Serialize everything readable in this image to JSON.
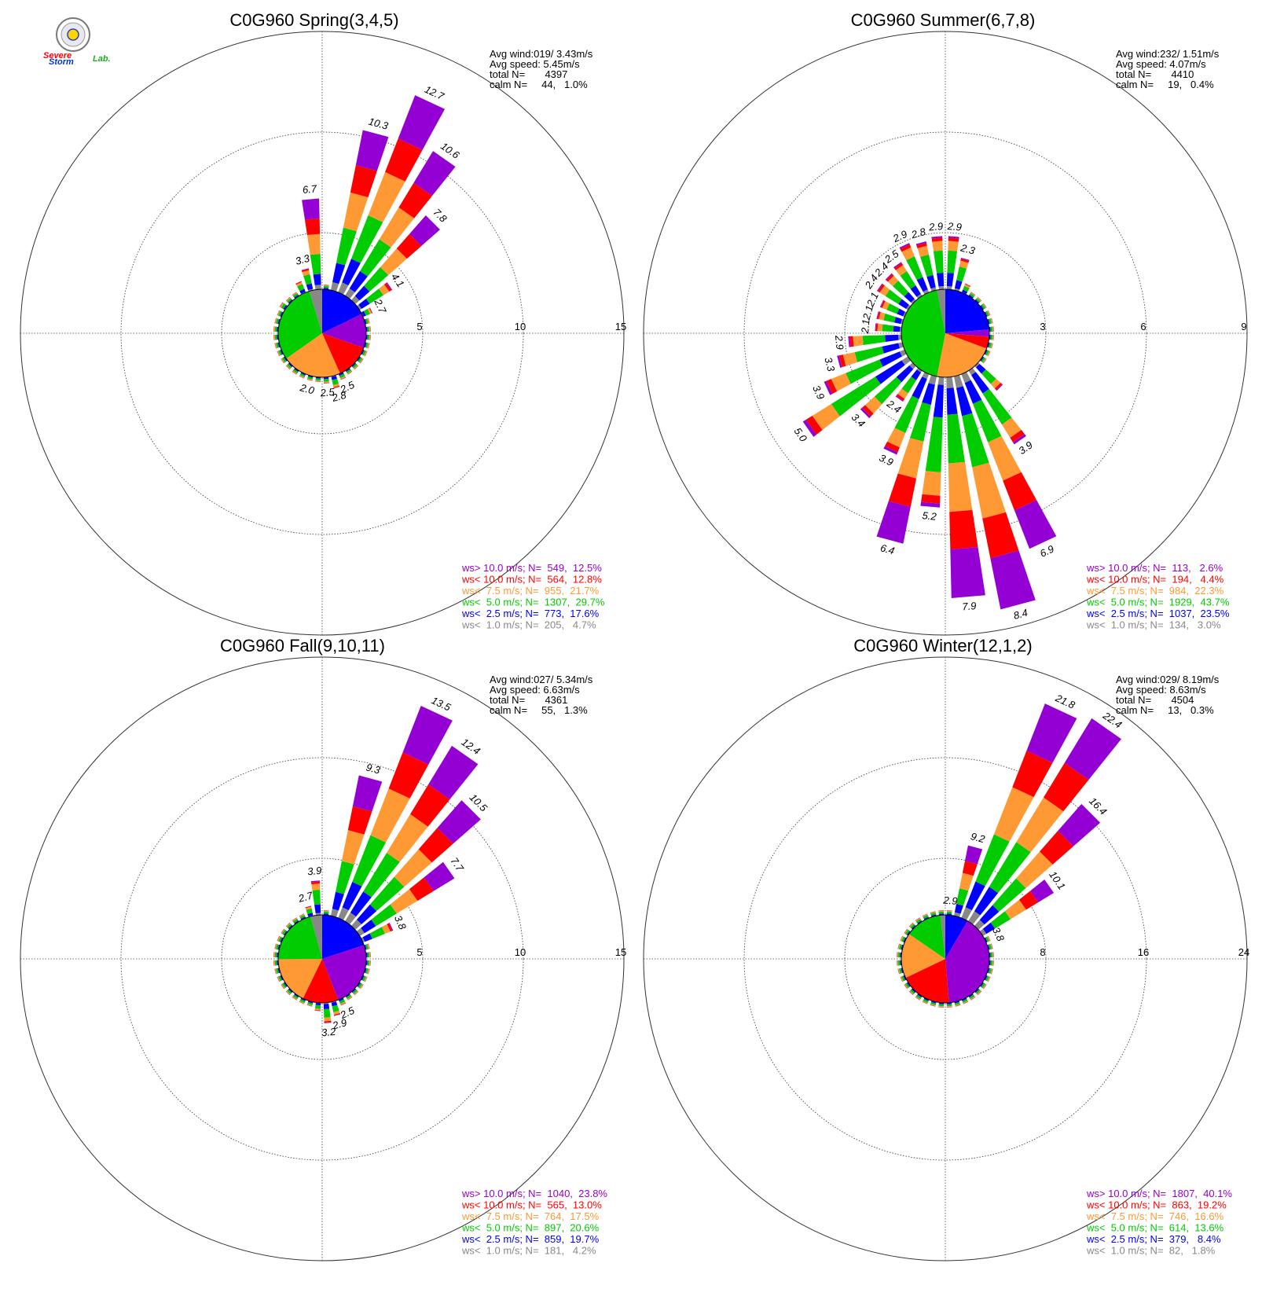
{
  "logo": {
    "text_a": "Severe",
    "text_b": "Storm",
    "text_c": "Lab."
  },
  "legend_colors": [
    "#9400d3",
    "#ff0000",
    "#ff9933",
    "#00cc00",
    "#0000ff",
    "#888888"
  ],
  "chart_data": [
    {
      "type": "windrose",
      "title": "C0G960 Spring(3,4,5)",
      "rings": [
        5,
        10,
        15
      ],
      "rmax": 15,
      "stats": [
        "Avg wind:019/ 3.43m/s",
        "Avg speed: 5.45m/s",
        "total N=       4397",
        "calm N=     44,   1.0%"
      ],
      "legend": [
        {
          "label": "ws> 10.0 m/s; N=",
          "value": "549,  12.5%"
        },
        {
          "label": "ws< 10.0 m/s; N=",
          "value": "564,  12.8%"
        },
        {
          "label": "ws<  7.5 m/s; N=",
          "value": "955,  21.7%"
        },
        {
          "label": "ws<  5.0 m/s; N=",
          "value": "1307,  29.7%"
        },
        {
          "label": "ws<  2.5 m/s; N=",
          "value": "773,  17.6%"
        },
        {
          "label": "ws<  1.0 m/s; N=",
          "value": "205,   4.7%"
        }
      ],
      "pie": [
        17.6,
        12.5,
        12.8,
        21.7,
        29.7,
        4.7
      ],
      "bars": [
        {
          "dir": 5,
          "v": 2.1
        },
        {
          "dir": 15,
          "v": 10.3,
          "label": "10.3"
        },
        {
          "dir": 25,
          "v": 12.7,
          "label": "12.7"
        },
        {
          "dir": 35,
          "v": 10.6,
          "label": "10.6"
        },
        {
          "dir": 45,
          "v": 7.8,
          "label": "7.8"
        },
        {
          "dir": 55,
          "v": 4.1,
          "label": "4.1"
        },
        {
          "dir": 65,
          "v": 2.7,
          "label": "2.7"
        },
        {
          "dir": 75,
          "v": 1.6
        },
        {
          "dir": 85,
          "v": 1.1
        },
        {
          "dir": 95,
          "v": 1.0
        },
        {
          "dir": 105,
          "v": 1.0
        },
        {
          "dir": 115,
          "v": 1.1
        },
        {
          "dir": 125,
          "v": 1.2
        },
        {
          "dir": 135,
          "v": 1.4
        },
        {
          "dir": 145,
          "v": 1.8
        },
        {
          "dir": 155,
          "v": 2.5,
          "label": "2.5"
        },
        {
          "dir": 165,
          "v": 2.8,
          "label": "2.8"
        },
        {
          "dir": 175,
          "v": 2.5,
          "label": "2.5"
        },
        {
          "dir": 185,
          "v": 2.0
        },
        {
          "dir": 195,
          "v": 2.0,
          "label": "2.0"
        },
        {
          "dir": 205,
          "v": 1.8
        },
        {
          "dir": 215,
          "v": 1.7
        },
        {
          "dir": 225,
          "v": 1.9
        },
        {
          "dir": 235,
          "v": 2.1
        },
        {
          "dir": 245,
          "v": 2.2
        },
        {
          "dir": 255,
          "v": 2.2
        },
        {
          "dir": 265,
          "v": 2.1
        },
        {
          "dir": 275,
          "v": 2.1
        },
        {
          "dir": 285,
          "v": 2.1
        },
        {
          "dir": 295,
          "v": 2.3
        },
        {
          "dir": 305,
          "v": 2.5
        },
        {
          "dir": 315,
          "v": 2.4
        },
        {
          "dir": 325,
          "v": 2.2
        },
        {
          "dir": 335,
          "v": 2.8
        },
        {
          "dir": 345,
          "v": 3.3,
          "label": "3.3"
        },
        {
          "dir": 355,
          "v": 6.7,
          "label": "6.7"
        }
      ]
    },
    {
      "type": "windrose",
      "title": "C0G960 Summer(6,7,8)",
      "rings": [
        3,
        6,
        9
      ],
      "rmax": 9,
      "stats": [
        "Avg wind:232/ 1.51m/s",
        "Avg speed: 4.07m/s",
        "total N=       4410",
        "calm N=     19,   0.4%"
      ],
      "legend": [
        {
          "label": "ws> 10.0 m/s; N=",
          "value": "113,   2.6%"
        },
        {
          "label": "ws< 10.0 m/s; N=",
          "value": "194,   4.4%"
        },
        {
          "label": "ws<  7.5 m/s; N=",
          "value": "984,  22.3%"
        },
        {
          "label": "ws<  5.0 m/s; N=",
          "value": "1929,  43.7%"
        },
        {
          "label": "ws<  2.5 m/s; N=",
          "value": "1037,  23.5%"
        },
        {
          "label": "ws<  1.0 m/s; N=",
          "value": "134,   3.0%"
        }
      ],
      "pie": [
        23.5,
        2.6,
        4.4,
        22.3,
        43.7,
        3.0
      ],
      "bars": [
        {
          "dir": 5,
          "v": 2.9,
          "label": "2.9"
        },
        {
          "dir": 15,
          "v": 2.3,
          "label": "2.3"
        },
        {
          "dir": 25,
          "v": 1.6
        },
        {
          "dir": 35,
          "v": 1.3
        },
        {
          "dir": 45,
          "v": 1.1
        },
        {
          "dir": 55,
          "v": 1.0
        },
        {
          "dir": 65,
          "v": 0.9
        },
        {
          "dir": 75,
          "v": 0.8
        },
        {
          "dir": 85,
          "v": 0.7
        },
        {
          "dir": 95,
          "v": 0.7
        },
        {
          "dir": 105,
          "v": 0.8
        },
        {
          "dir": 115,
          "v": 1.0
        },
        {
          "dir": 125,
          "v": 1.4
        },
        {
          "dir": 135,
          "v": 2.3
        },
        {
          "dir": 145,
          "v": 3.9,
          "label": "3.9"
        },
        {
          "dir": 155,
          "v": 6.9,
          "label": "6.9"
        },
        {
          "dir": 165,
          "v": 8.4,
          "label": "8.4"
        },
        {
          "dir": 175,
          "v": 7.9,
          "label": "7.9"
        },
        {
          "dir": 185,
          "v": 5.2,
          "label": "5.2"
        },
        {
          "dir": 195,
          "v": 6.4,
          "label": "6.4"
        },
        {
          "dir": 205,
          "v": 3.9,
          "label": "3.9"
        },
        {
          "dir": 215,
          "v": 2.4,
          "label": "2.4"
        },
        {
          "dir": 225,
          "v": 3.4,
          "label": "3.4"
        },
        {
          "dir": 235,
          "v": 5.0,
          "label": "5.0"
        },
        {
          "dir": 245,
          "v": 3.9,
          "label": "3.9"
        },
        {
          "dir": 255,
          "v": 3.3,
          "label": "3.3"
        },
        {
          "dir": 265,
          "v": 2.9,
          "label": "2.9"
        },
        {
          "dir": 275,
          "v": 2.1,
          "label": "2.1"
        },
        {
          "dir": 285,
          "v": 2.1,
          "label": "2.1"
        },
        {
          "dir": 295,
          "v": 2.1,
          "label": "2.1"
        },
        {
          "dir": 305,
          "v": 2.4,
          "label": "2.4"
        },
        {
          "dir": 315,
          "v": 2.4,
          "label": "2.4"
        },
        {
          "dir": 325,
          "v": 2.5,
          "label": "2.5"
        },
        {
          "dir": 335,
          "v": 2.9,
          "label": "2.9"
        },
        {
          "dir": 345,
          "v": 2.8,
          "label": "2.8"
        },
        {
          "dir": 355,
          "v": 2.9,
          "label": "2.9"
        }
      ]
    },
    {
      "type": "windrose",
      "title": "C0G960 Fall(9,10,11)",
      "rings": [
        5,
        10,
        15
      ],
      "rmax": 15,
      "stats": [
        "Avg wind:027/ 5.34m/s",
        "Avg speed: 6.63m/s",
        "total N=       4361",
        "calm N=     55,   1.3%"
      ],
      "legend": [
        {
          "label": "ws> 10.0 m/s; N=",
          "value": "1040,  23.8%"
        },
        {
          "label": "ws< 10.0 m/s; N=",
          "value": "565,  13.0%"
        },
        {
          "label": "ws<  7.5 m/s; N=",
          "value": "764,  17.5%"
        },
        {
          "label": "ws<  5.0 m/s; N=",
          "value": "897,  20.6%"
        },
        {
          "label": "ws<  2.5 m/s; N=",
          "value": "859,  19.7%"
        },
        {
          "label": "ws<  1.0 m/s; N=",
          "value": "181,   4.2%"
        }
      ],
      "pie": [
        19.7,
        23.8,
        13.0,
        17.5,
        20.6,
        4.2
      ],
      "bars": [
        {
          "dir": 5,
          "v": 2.4
        },
        {
          "dir": 15,
          "v": 9.3,
          "label": "9.3"
        },
        {
          "dir": 25,
          "v": 13.5,
          "label": "13.5"
        },
        {
          "dir": 35,
          "v": 12.4,
          "label": "12.4"
        },
        {
          "dir": 45,
          "v": 10.5,
          "label": "10.5"
        },
        {
          "dir": 55,
          "v": 7.7,
          "label": "7.7"
        },
        {
          "dir": 65,
          "v": 3.8,
          "label": "3.8"
        },
        {
          "dir": 75,
          "v": 1.7
        },
        {
          "dir": 85,
          "v": 1.2
        },
        {
          "dir": 95,
          "v": 1.0
        },
        {
          "dir": 105,
          "v": 1.0
        },
        {
          "dir": 115,
          "v": 1.0
        },
        {
          "dir": 125,
          "v": 1.1
        },
        {
          "dir": 135,
          "v": 1.3
        },
        {
          "dir": 145,
          "v": 1.7
        },
        {
          "dir": 155,
          "v": 2.5,
          "label": "2.5"
        },
        {
          "dir": 165,
          "v": 2.9,
          "label": "2.9"
        },
        {
          "dir": 175,
          "v": 3.2,
          "label": "3.2"
        },
        {
          "dir": 185,
          "v": 2.6
        },
        {
          "dir": 195,
          "v": 1.9
        },
        {
          "dir": 205,
          "v": 1.7
        },
        {
          "dir": 215,
          "v": 1.6
        },
        {
          "dir": 225,
          "v": 1.6
        },
        {
          "dir": 235,
          "v": 1.6
        },
        {
          "dir": 245,
          "v": 1.6
        },
        {
          "dir": 255,
          "v": 1.6
        },
        {
          "dir": 265,
          "v": 1.6
        },
        {
          "dir": 275,
          "v": 1.6
        },
        {
          "dir": 285,
          "v": 1.7
        },
        {
          "dir": 295,
          "v": 1.9
        },
        {
          "dir": 305,
          "v": 2.0
        },
        {
          "dir": 315,
          "v": 2.0
        },
        {
          "dir": 325,
          "v": 2.0
        },
        {
          "dir": 335,
          "v": 2.2
        },
        {
          "dir": 345,
          "v": 2.7,
          "label": "2.7"
        },
        {
          "dir": 355,
          "v": 3.9,
          "label": "3.9"
        }
      ]
    },
    {
      "type": "windrose",
      "title": "C0G960 Winter(12,1,2)",
      "rings": [
        8,
        16,
        24
      ],
      "rmax": 24,
      "stats": [
        "Avg wind:029/ 8.19m/s",
        "Avg speed: 8.63m/s",
        "total N=       4504",
        "calm N=     13,   0.3%"
      ],
      "legend": [
        {
          "label": "ws> 10.0 m/s; N=",
          "value": "1807,  40.1%"
        },
        {
          "label": "ws< 10.0 m/s; N=",
          "value": "863,  19.2%"
        },
        {
          "label": "ws<  7.5 m/s; N=",
          "value": "746,  16.6%"
        },
        {
          "label": "ws<  5.0 m/s; N=",
          "value": "614,  13.6%"
        },
        {
          "label": "ws<  2.5 m/s; N=",
          "value": "379,   8.4%"
        },
        {
          "label": "ws<  1.0 m/s; N=",
          "value": "82,   1.8%"
        }
      ],
      "pie": [
        8.4,
        40.1,
        19.2,
        16.6,
        13.6,
        1.8
      ],
      "bars": [
        {
          "dir": 5,
          "v": 2.9,
          "label": "2.9"
        },
        {
          "dir": 15,
          "v": 9.2,
          "label": "9.2"
        },
        {
          "dir": 25,
          "v": 21.8,
          "label": "21.8"
        },
        {
          "dir": 35,
          "v": 22.4,
          "label": "22.4"
        },
        {
          "dir": 45,
          "v": 16.4,
          "label": "16.4"
        },
        {
          "dir": 55,
          "v": 10.1,
          "label": "10.1"
        },
        {
          "dir": 65,
          "v": 3.8,
          "label": "3.8"
        },
        {
          "dir": 75,
          "v": 2.3
        },
        {
          "dir": 85,
          "v": 1.6
        },
        {
          "dir": 95,
          "v": 1.1
        },
        {
          "dir": 105,
          "v": 0.9
        },
        {
          "dir": 115,
          "v": 0.8
        },
        {
          "dir": 125,
          "v": 0.7
        },
        {
          "dir": 135,
          "v": 0.7
        },
        {
          "dir": 145,
          "v": 0.6
        },
        {
          "dir": 155,
          "v": 0.6
        },
        {
          "dir": 165,
          "v": 0.6
        },
        {
          "dir": 175,
          "v": 0.6
        },
        {
          "dir": 185,
          "v": 0.6
        },
        {
          "dir": 195,
          "v": 0.6
        },
        {
          "dir": 205,
          "v": 0.6
        },
        {
          "dir": 215,
          "v": 0.6
        },
        {
          "dir": 225,
          "v": 0.6
        },
        {
          "dir": 235,
          "v": 0.6
        },
        {
          "dir": 245,
          "v": 0.6
        },
        {
          "dir": 255,
          "v": 0.6
        },
        {
          "dir": 265,
          "v": 0.7
        },
        {
          "dir": 275,
          "v": 0.7
        },
        {
          "dir": 285,
          "v": 0.7
        },
        {
          "dir": 295,
          "v": 0.8
        },
        {
          "dir": 305,
          "v": 0.9
        },
        {
          "dir": 315,
          "v": 0.9
        },
        {
          "dir": 325,
          "v": 1.0
        },
        {
          "dir": 335,
          "v": 1.1
        },
        {
          "dir": 345,
          "v": 1.4
        },
        {
          "dir": 355,
          "v": 1.7
        }
      ]
    }
  ]
}
